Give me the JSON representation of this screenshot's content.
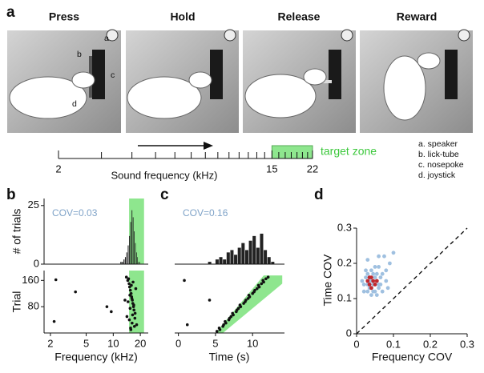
{
  "panel_labels": [
    "a",
    "b",
    "c",
    "d"
  ],
  "panel_a": {
    "steps": [
      "Press",
      "Hold",
      "Release",
      "Reward"
    ],
    "callouts": [
      "a",
      "b",
      "c",
      "d"
    ],
    "legend": [
      "a. speaker",
      "b. lick-tube",
      "c. nosepoke",
      "d. joystick"
    ]
  },
  "frequency_scale": {
    "log": true,
    "xlim": [
      2,
      22
    ],
    "xticks": [
      2,
      15,
      22
    ],
    "minor_ticks": [
      3,
      4,
      5,
      6,
      7,
      8,
      9,
      10,
      11,
      12,
      13,
      14,
      16,
      17,
      18,
      19,
      20,
      21
    ],
    "x_label": "Sound frequency (kHz)",
    "target_zone": [
      15,
      22
    ],
    "target_label": "target zone",
    "zone_color": "#8ee68e"
  },
  "chart_data": [
    {
      "type": "histogram",
      "log": true,
      "xlim": [
        1.7,
        24.5
      ],
      "ylim": [
        0,
        28
      ],
      "yticks": [
        0,
        25
      ],
      "y_label": "# of trials",
      "annotation": "COV=0.03",
      "color": "#222222",
      "zone_color": "#8ee68e",
      "target_zone": [
        15,
        22
      ],
      "bins": [
        12,
        12.5,
        13,
        13.5,
        14,
        14.5,
        15,
        15.5,
        16,
        16.5,
        17,
        17.5,
        18,
        18.5,
        19,
        19.5,
        20
      ],
      "values": [
        1,
        1,
        2,
        3,
        5,
        8,
        12,
        18,
        23,
        20,
        14,
        9,
        5,
        3,
        1,
        1
      ]
    },
    {
      "type": "scatter",
      "log": true,
      "xlim": [
        1.7,
        24.5
      ],
      "ylim": [
        0,
        190
      ],
      "yticks": [
        80,
        160
      ],
      "xticks": [
        2,
        5,
        10,
        20
      ],
      "y_label": "Trial",
      "x_label": "Frequency (kHz)",
      "color": "#111111",
      "zone_color": "#8ee68e",
      "target_zone": [
        15,
        22
      ],
      "x": [
        2.3,
        2.2,
        3.8,
        8.5,
        9.5,
        14,
        14.5,
        15,
        15.2,
        15.5,
        15.8,
        16,
        16.3,
        16.5,
        16.8,
        17,
        17.5,
        14.2,
        15.1,
        16.2,
        17.2,
        15.6,
        14.8,
        16.6,
        15.9,
        17.8,
        15.3,
        16.1,
        14.6,
        16.9,
        15.4,
        16.4,
        17.4,
        18.2,
        13.5,
        15.7
      ],
      "values": [
        162,
        35,
        125,
        80,
        65,
        170,
        160,
        150,
        140,
        130,
        120,
        110,
        100,
        90,
        80,
        70,
        60,
        50,
        40,
        30,
        20,
        15,
        165,
        155,
        145,
        135,
        115,
        105,
        95,
        85,
        75,
        55,
        45,
        25,
        100,
        10
      ]
    },
    {
      "type": "histogram",
      "log": false,
      "xlim": [
        -0.5,
        14.3
      ],
      "ylim": [
        0,
        28
      ],
      "annotation": "COV=0.16",
      "color": "#222222",
      "bins": [
        4,
        4.5,
        5,
        5.5,
        6,
        6.5,
        7,
        7.5,
        8,
        8.5,
        9,
        9.5,
        10,
        10.5,
        11,
        11.5,
        12,
        12.5,
        13
      ],
      "values": [
        1,
        0,
        2,
        3,
        2,
        5,
        6,
        4,
        7,
        9,
        6,
        10,
        12,
        7,
        13,
        6,
        3,
        1
      ]
    },
    {
      "type": "scatter",
      "log": false,
      "xlim": [
        -0.5,
        14.3
      ],
      "ylim": [
        0,
        190
      ],
      "xticks": [
        0,
        5,
        10
      ],
      "x_label": "Time (s)",
      "color": "#111111",
      "zone_color": "#8ee68e",
      "target_zone": {
        "x": [
          5,
          6,
          14,
          14,
          11.5
        ],
        "y": [
          0,
          0,
          150,
          175,
          175
        ]
      },
      "x": [
        5.2,
        5.6,
        5.5,
        6.0,
        6.1,
        6.4,
        6.3,
        6.8,
        6.9,
        7.1,
        7.4,
        7.3,
        7.8,
        7.9,
        8.1,
        8.4,
        8.3,
        8.8,
        9.0,
        9.1,
        9.4,
        9.6,
        9.5,
        10.0,
        10.2,
        10.3,
        10.6,
        10.9,
        10.8,
        11.2,
        11.5,
        11.4,
        11.8,
        12.1,
        0.8,
        1.2,
        4.2
      ],
      "values": [
        5,
        10,
        15,
        20,
        25,
        30,
        35,
        40,
        45,
        50,
        55,
        60,
        65,
        70,
        75,
        80,
        85,
        90,
        95,
        100,
        105,
        110,
        115,
        120,
        125,
        130,
        135,
        140,
        145,
        150,
        155,
        160,
        165,
        170,
        160,
        25,
        100
      ]
    },
    {
      "type": "scatter",
      "log": false,
      "xlim": [
        0,
        0.3
      ],
      "ylim": [
        0,
        0.3
      ],
      "xticks": [
        0,
        0.1,
        0.2,
        0.3
      ],
      "yticks": [
        0,
        0.1,
        0.2,
        0.3
      ],
      "x_label": "Frequency COV",
      "y_label": "Time COV",
      "diagonal": true,
      "series": [
        {
          "color": "#9fc0e0",
          "x": [
            0.02,
            0.025,
            0.03,
            0.03,
            0.035,
            0.04,
            0.04,
            0.045,
            0.05,
            0.05,
            0.055,
            0.06,
            0.06,
            0.065,
            0.07,
            0.075,
            0.08,
            0.085,
            0.09,
            0.03,
            0.04,
            0.05,
            0.02,
            0.035,
            0.045,
            0.055,
            0.065,
            0.025,
            0.06,
            0.07,
            0.04,
            0.05,
            0.03,
            0.08,
            0.1,
            0.015,
            0.045,
            0.055,
            0.035,
            0.06
          ],
          "values": [
            0.14,
            0.16,
            0.12,
            0.17,
            0.15,
            0.13,
            0.18,
            0.14,
            0.16,
            0.12,
            0.15,
            0.13,
            0.19,
            0.14,
            0.17,
            0.22,
            0.15,
            0.13,
            0.2,
            0.21,
            0.11,
            0.19,
            0.12,
            0.13,
            0.17,
            0.11,
            0.16,
            0.18,
            0.14,
            0.12,
            0.15,
            0.14,
            0.14,
            0.18,
            0.23,
            0.15,
            0.12,
            0.17,
            0.16,
            0.22
          ]
        },
        {
          "color": "#c0282d",
          "x": [
            0.03,
            0.035,
            0.04,
            0.045,
            0.05,
            0.04,
            0.055,
            0.035
          ],
          "values": [
            0.15,
            0.14,
            0.16,
            0.15,
            0.14,
            0.13,
            0.15,
            0.16
          ]
        }
      ]
    }
  ]
}
